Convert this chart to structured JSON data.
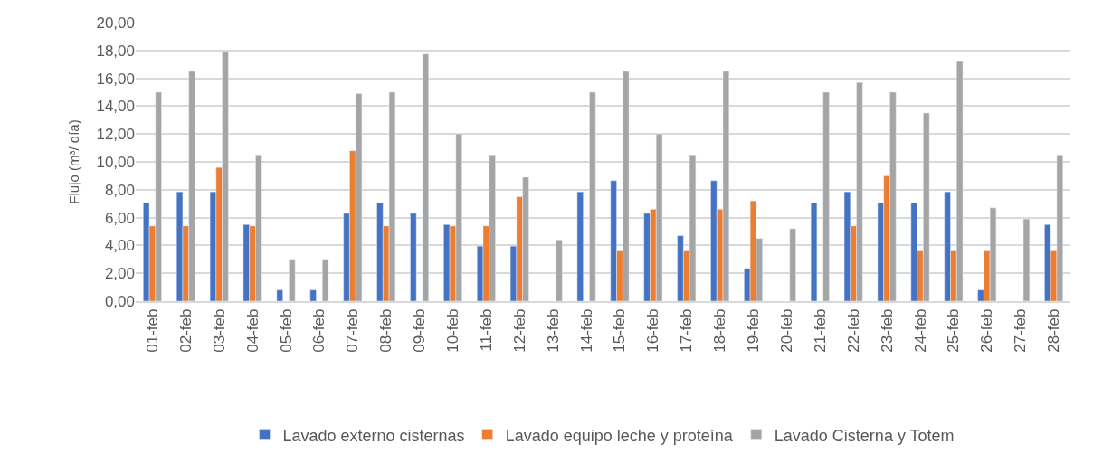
{
  "chart_data": {
    "type": "bar",
    "ylabel": "Flujo (m³/ día)",
    "categories": [
      "01-feb",
      "02-feb",
      "03-feb",
      "04-feb",
      "05-feb",
      "06-feb",
      "07-feb",
      "08-feb",
      "09-feb",
      "10-feb",
      "11-feb",
      "12-feb",
      "13-feb",
      "14-feb",
      "15-feb",
      "16-feb",
      "17-feb",
      "18-feb",
      "19-feb",
      "20-feb",
      "21-feb",
      "22-feb",
      "23-feb",
      "24-feb",
      "25-feb",
      "26-feb",
      "27-feb",
      "28-feb"
    ],
    "series": [
      {
        "name": "Lavado externo cisternas",
        "color": "#4472c4",
        "values": [
          7.05,
          7.85,
          7.85,
          5.5,
          0.8,
          0.8,
          6.3,
          7.05,
          6.3,
          5.5,
          3.95,
          3.95,
          null,
          7.85,
          8.65,
          6.3,
          4.7,
          8.65,
          2.35,
          null,
          7.05,
          7.85,
          7.05,
          7.05,
          7.85,
          0.8,
          null,
          5.5
        ]
      },
      {
        "name": "Lavado equipo leche y proteína",
        "color": "#ed7d31",
        "values": [
          5.4,
          5.4,
          9.6,
          5.4,
          null,
          null,
          10.8,
          5.4,
          null,
          5.4,
          5.4,
          7.5,
          null,
          null,
          3.6,
          6.6,
          3.6,
          6.6,
          7.2,
          null,
          null,
          5.4,
          9.0,
          3.6,
          3.6,
          3.6,
          null,
          3.6
        ]
      },
      {
        "name": "Lavado Cisterna y Totem",
        "color": "#a5a5a5",
        "values": [
          15,
          16.5,
          17.9,
          10.5,
          3,
          3,
          14.9,
          15,
          17.75,
          12,
          10.5,
          8.9,
          4.4,
          15,
          16.5,
          12,
          10.5,
          16.5,
          4.5,
          5.2,
          15,
          15.7,
          15,
          13.5,
          17.2,
          6.7,
          5.9,
          10.5
        ]
      }
    ],
    "ylim": [
      0,
      20
    ],
    "yticks": [
      {
        "value": 0,
        "label": "0,00"
      },
      {
        "value": 2,
        "label": "2,00"
      },
      {
        "value": 4,
        "label": "4,00"
      },
      {
        "value": 6,
        "label": "6,00"
      },
      {
        "value": 8,
        "label": "8,00"
      },
      {
        "value": 10,
        "label": "10,00"
      },
      {
        "value": 12,
        "label": "12,00"
      },
      {
        "value": 14,
        "label": "14,00"
      },
      {
        "value": 16,
        "label": "16,00"
      },
      {
        "value": 18,
        "label": "18,00"
      },
      {
        "value": 20,
        "label": "20,00"
      }
    ],
    "grid": "y",
    "legend": "bottom"
  }
}
